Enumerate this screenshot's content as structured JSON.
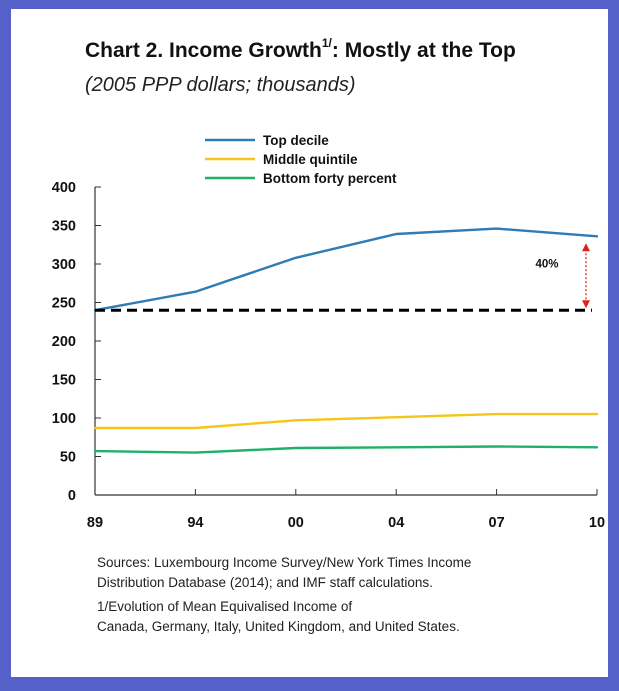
{
  "title_main": "Chart 2. Income Growth",
  "title_sup": "1/",
  "title_rest": ": Mostly at the Top",
  "subtitle": "(2005 PPP dollars; thousands)",
  "colors": {
    "frame": "#5560c8",
    "top_decile": "#2e7bb5",
    "middle_quintile": "#f5c518",
    "bottom_forty": "#1fb167",
    "annotation": "#e0201c"
  },
  "chart_data": {
    "type": "line",
    "categories": [
      "89",
      "94",
      "00",
      "04",
      "07",
      "10"
    ],
    "ylim": [
      0,
      400
    ],
    "yticks": [
      "0",
      "50",
      "100",
      "150",
      "200",
      "250",
      "300",
      "350",
      "400"
    ],
    "series": [
      {
        "name": "Top decile",
        "values": [
          240,
          264,
          308,
          339,
          346,
          336
        ]
      },
      {
        "name": "Middle quintile",
        "values": [
          87,
          87,
          97,
          101,
          105,
          105
        ]
      },
      {
        "name": "Bottom forty percent",
        "values": [
          57,
          55,
          61,
          62,
          63,
          62
        ]
      }
    ],
    "reference_line": 240,
    "annotation": "40%",
    "legend_placement": "top-left",
    "grid": false
  },
  "notes": {
    "sources_line1": "Sources: Luxembourg Income Survey/New York Times Income",
    "sources_line2": "Distribution Database (2014); and IMF staff calculations.",
    "footnote_line1": "1/Evolution of Mean Equivalised Income of",
    "footnote_line2": "Canada, Germany, Italy, United Kingdom, and United States."
  }
}
